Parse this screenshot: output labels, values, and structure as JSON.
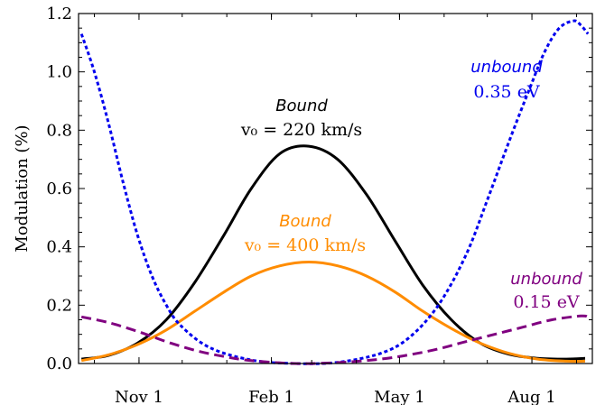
{
  "chart_data": {
    "type": "line",
    "title": "",
    "xlabel": "",
    "ylabel": "Modulation (%)",
    "ylim": [
      0,
      1.2
    ],
    "xlim": [
      "2014-09-20",
      "2015-09-12"
    ],
    "x_tick_dates": [
      "2014-11-01",
      "2015-02-01",
      "2015-05-01",
      "2015-08-01"
    ],
    "x_tick_labels": [
      "Nov 1",
      "Feb 1",
      "May 1",
      "Aug 1"
    ],
    "y_ticks": [
      0.0,
      0.2,
      0.4,
      0.6,
      0.8,
      1.0,
      1.2
    ],
    "y_tick_labels": [
      "0.0",
      "0.2",
      "0.4",
      "0.6",
      "0.8",
      "1.0",
      "1.2"
    ],
    "grid": false,
    "legend": "none",
    "series": [
      {
        "color": "#000000",
        "dash": "solid",
        "x": [
          "2014-09-22",
          "2014-10-11",
          "2014-10-31",
          "2014-11-20",
          "2014-12-10",
          "2014-12-30",
          "2015-01-18",
          "2015-02-07",
          "2015-02-27",
          "2015-03-19",
          "2015-04-08",
          "2015-04-28",
          "2015-05-17",
          "2015-06-06",
          "2015-06-26",
          "2015-07-16",
          "2015-08-05",
          "2015-08-25",
          "2015-09-07"
        ],
        "y": [
          0.015,
          0.028,
          0.07,
          0.15,
          0.28,
          0.44,
          0.6,
          0.72,
          0.745,
          0.7,
          0.58,
          0.42,
          0.27,
          0.15,
          0.07,
          0.032,
          0.018,
          0.015,
          0.018
        ]
      },
      {
        "color": "#ff8c00",
        "dash": "solid",
        "x": [
          "2014-09-22",
          "2014-10-11",
          "2014-10-31",
          "2014-11-20",
          "2014-12-10",
          "2014-12-30",
          "2015-01-18",
          "2015-02-07",
          "2015-02-27",
          "2015-03-19",
          "2015-04-08",
          "2015-04-28",
          "2015-05-17",
          "2015-06-06",
          "2015-06-26",
          "2015-07-16",
          "2015-08-05",
          "2015-08-25",
          "2015-09-07"
        ],
        "y": [
          0.01,
          0.03,
          0.065,
          0.115,
          0.18,
          0.245,
          0.3,
          0.335,
          0.348,
          0.335,
          0.3,
          0.245,
          0.18,
          0.12,
          0.07,
          0.035,
          0.015,
          0.008,
          0.008
        ]
      },
      {
        "name": "0.35 eV",
        "color": "#0000ee",
        "dash": "dotted",
        "x": [
          "2014-09-22",
          "2014-10-01",
          "2014-10-11",
          "2014-10-21",
          "2014-10-31",
          "2014-11-10",
          "2014-11-20",
          "2014-11-30",
          "2014-12-20",
          "2015-01-18",
          "2015-02-17",
          "2015-03-19",
          "2015-04-18",
          "2015-05-08",
          "2015-05-28",
          "2015-06-16",
          "2015-07-01",
          "2015-07-16",
          "2015-07-31",
          "2015-08-10",
          "2015-08-20",
          "2015-08-30",
          "2015-09-04",
          "2015-09-09"
        ],
        "y": [
          1.13,
          1.0,
          0.82,
          0.62,
          0.44,
          0.3,
          0.2,
          0.13,
          0.055,
          0.012,
          0.0,
          0.004,
          0.035,
          0.09,
          0.2,
          0.37,
          0.56,
          0.76,
          0.95,
          1.07,
          1.15,
          1.175,
          1.16,
          1.13
        ]
      },
      {
        "name": "0.15 eV",
        "color": "#800080",
        "dash": "dashed",
        "x": [
          "2014-09-22",
          "2014-10-11",
          "2014-10-31",
          "2014-11-20",
          "2014-12-10",
          "2014-12-30",
          "2015-01-18",
          "2015-02-17",
          "2015-03-19",
          "2015-04-18",
          "2015-05-08",
          "2015-05-28",
          "2015-06-16",
          "2015-07-06",
          "2015-07-26",
          "2015-08-15",
          "2015-09-04",
          "2015-09-09"
        ],
        "y": [
          0.16,
          0.14,
          0.11,
          0.075,
          0.045,
          0.024,
          0.01,
          0.0,
          0.003,
          0.015,
          0.03,
          0.05,
          0.075,
          0.1,
          0.125,
          0.15,
          0.163,
          0.16
        ]
      }
    ],
    "annotations": [
      {
        "word": "Bound",
        "math": "v₀ = 220 km/s",
        "color": "#000000"
      },
      {
        "word": "Bound",
        "math": "v₀ = 400 km/s",
        "color": "#ff8c00"
      },
      {
        "word": "unbound",
        "math": "0.35 eV",
        "color": "#0000ee"
      },
      {
        "word": "unbound",
        "math": "0.15 eV",
        "color": "#800080"
      }
    ]
  }
}
